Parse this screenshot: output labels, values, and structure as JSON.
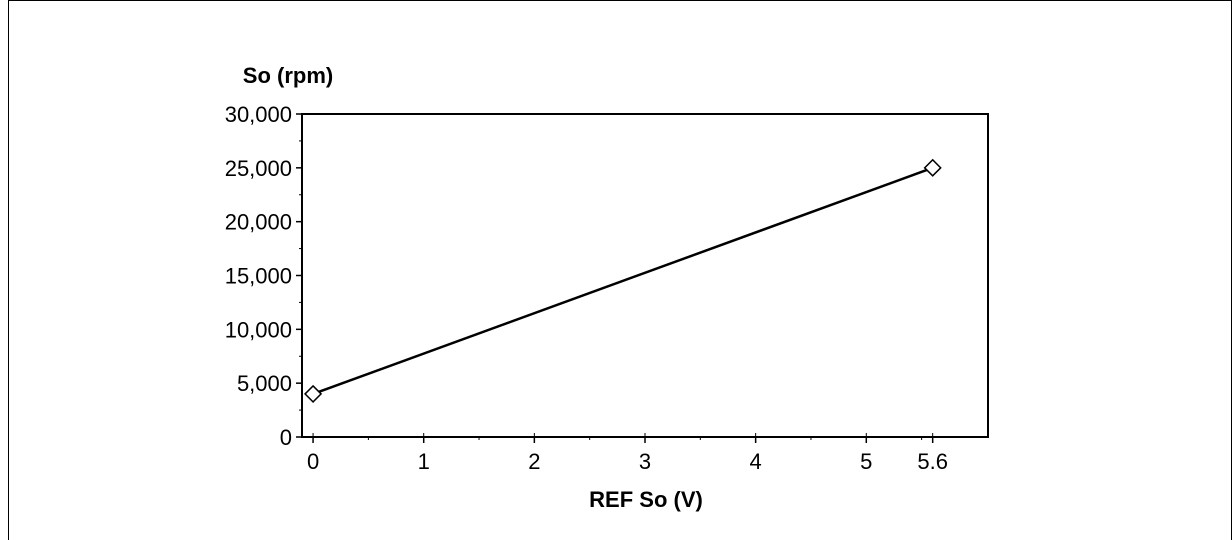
{
  "chart_data": {
    "type": "line",
    "title": "",
    "xlabel": "REF So (V)",
    "ylabel": "So (rpm)",
    "x_ticks": [
      "0",
      "1",
      "2",
      "3",
      "4",
      "5",
      "5.6"
    ],
    "x_tick_values": [
      0,
      1,
      2,
      3,
      4,
      5,
      5.6
    ],
    "y_ticks": [
      "0",
      "5,000",
      "10,000",
      "15,000",
      "20,000",
      "25,000",
      "30,000"
    ],
    "y_tick_values": [
      0,
      5000,
      10000,
      15000,
      20000,
      25000,
      30000
    ],
    "xlim": [
      -0.1,
      6.1
    ],
    "ylim": [
      0,
      30000
    ],
    "grid": false,
    "legend": "none",
    "series": [
      {
        "x": [
          0,
          5.6
        ],
        "y": [
          4000,
          25000
        ],
        "marker": "diamond",
        "color": "#000000"
      }
    ]
  }
}
